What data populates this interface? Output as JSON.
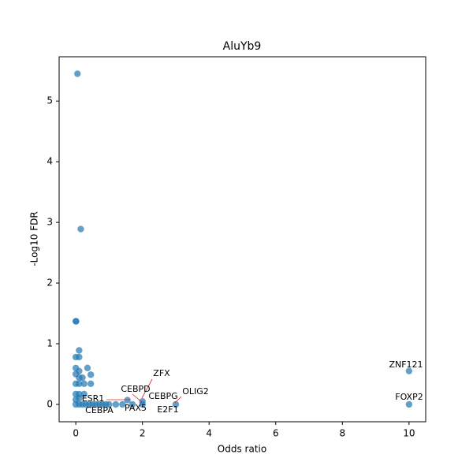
{
  "chart_data": {
    "type": "scatter",
    "title": "AluYb9",
    "x_label": "Odds ratio",
    "y_label": "-Log10 FDR",
    "color": "#1f77b4",
    "alpha": 0.7,
    "xlim": [
      -0.5,
      10.5
    ],
    "ylim": [
      -0.286,
      5.73
    ],
    "xticks": [
      0,
      2,
      4,
      6,
      8,
      10
    ],
    "yticks": [
      0,
      1,
      2,
      3,
      4,
      5
    ],
    "x": [
      0.05,
      0.15,
      0,
      0.01,
      0.1,
      0,
      0.1,
      0,
      0.35,
      0.1,
      0,
      0.45,
      0.2,
      0.1,
      0,
      0.25,
      0.45,
      0.1,
      0,
      0.25,
      0.1,
      0,
      0.1,
      0,
      0.1,
      0.2,
      0.3,
      0.4,
      0.5,
      0.6,
      0.7,
      0.8,
      0.9,
      1.0,
      1.2,
      1.4,
      1.55,
      1.7,
      2,
      2,
      3,
      10,
      10
    ],
    "y": [
      5.45,
      2.89,
      1.37,
      1.37,
      0.89,
      0.78,
      0.78,
      0.6,
      0.6,
      0.55,
      0.5,
      0.49,
      0.44,
      0.44,
      0.34,
      0.34,
      0.34,
      0.34,
      0.17,
      0.17,
      0.17,
      0.08,
      0.1,
      0,
      0,
      0,
      0,
      0,
      0,
      0,
      0,
      0,
      0,
      0,
      0,
      0,
      0.07,
      0,
      0.05,
      0,
      0,
      0.55,
      0
    ],
    "annotations": [
      "ZNF121",
      "FOXP2",
      "OLIG2",
      "E2F1",
      "CEBPG",
      "ZFX",
      "CEBPD",
      "ESR1",
      "CEBPA",
      "PAX5"
    ]
  }
}
